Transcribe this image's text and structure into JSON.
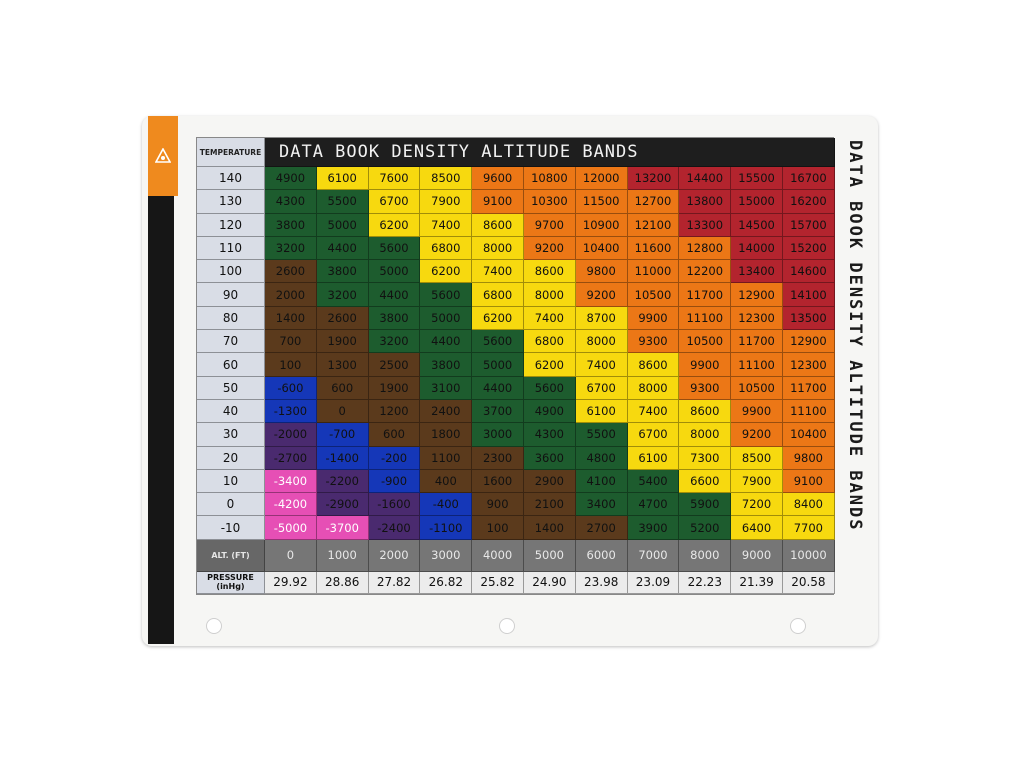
{
  "title": "DATA BOOK DENSITY ALTITUDE BANDS",
  "side_title": "DATA BOOK DENSITY ALTITUDE BANDS",
  "header": {
    "temperature_label": "TEMPERATURE"
  },
  "footer": {
    "alt_label": "ALT. (FT)",
    "pressure_label_line1": "PRESSURE",
    "pressure_label_line2": "(inHg)"
  },
  "colors": {
    "pink": "#e64fb5",
    "purple": "#4a2a6f",
    "blue": "#1537b8",
    "brown": "#5b3a1c",
    "green": "#1d5c2e",
    "yellow": "#f7d90f",
    "orange": "#ec7716",
    "red": "#b3242e",
    "accent_orange": "#ef8a1e"
  },
  "chart_data": {
    "type": "table",
    "title": "DATA BOOK DENSITY ALTITUDE BANDS",
    "xlabel": "ALT. (FT)",
    "ylabel": "TEMPERATURE",
    "altitudes": [
      "0",
      "1000",
      "2000",
      "3000",
      "4000",
      "5000",
      "6000",
      "7000",
      "8000",
      "9000",
      "10000"
    ],
    "pressures": [
      "29.92",
      "28.86",
      "27.82",
      "26.82",
      "25.82",
      "24.90",
      "23.98",
      "23.09",
      "22.23",
      "21.39",
      "20.58"
    ],
    "temperatures": [
      "140",
      "130",
      "120",
      "110",
      "100",
      "90",
      "80",
      "70",
      "60",
      "50",
      "40",
      "30",
      "20",
      "10",
      "0",
      "-10"
    ],
    "values": [
      [
        "4900",
        "6100",
        "7600",
        "8500",
        "9600",
        "10800",
        "12000",
        "13200",
        "14400",
        "15500",
        "16700"
      ],
      [
        "4300",
        "5500",
        "6700",
        "7900",
        "9100",
        "10300",
        "11500",
        "12700",
        "13800",
        "15000",
        "16200"
      ],
      [
        "3800",
        "5000",
        "6200",
        "7400",
        "8600",
        "9700",
        "10900",
        "12100",
        "13300",
        "14500",
        "15700"
      ],
      [
        "3200",
        "4400",
        "5600",
        "6800",
        "8000",
        "9200",
        "10400",
        "11600",
        "12800",
        "14000",
        "15200"
      ],
      [
        "2600",
        "3800",
        "5000",
        "6200",
        "7400",
        "8600",
        "9800",
        "11000",
        "12200",
        "13400",
        "14600"
      ],
      [
        "2000",
        "3200",
        "4400",
        "5600",
        "6800",
        "8000",
        "9200",
        "10500",
        "11700",
        "12900",
        "14100"
      ],
      [
        "1400",
        "2600",
        "3800",
        "5000",
        "6200",
        "7400",
        "8700",
        "9900",
        "11100",
        "12300",
        "13500"
      ],
      [
        "700",
        "1900",
        "3200",
        "4400",
        "5600",
        "6800",
        "8000",
        "9300",
        "10500",
        "11700",
        "12900"
      ],
      [
        "100",
        "1300",
        "2500",
        "3800",
        "5000",
        "6200",
        "7400",
        "8600",
        "9900",
        "11100",
        "12300"
      ],
      [
        "-600",
        "600",
        "1900",
        "3100",
        "4400",
        "5600",
        "6700",
        "8000",
        "9300",
        "10500",
        "11700"
      ],
      [
        "-1300",
        "0",
        "1200",
        "2400",
        "3700",
        "4900",
        "6100",
        "7400",
        "8600",
        "9900",
        "11100"
      ],
      [
        "-2000",
        "-700",
        "600",
        "1800",
        "3000",
        "4300",
        "5500",
        "6700",
        "8000",
        "9200",
        "10400"
      ],
      [
        "-2700",
        "-1400",
        "-200",
        "1100",
        "2300",
        "3600",
        "4800",
        "6100",
        "7300",
        "8500",
        "9800"
      ],
      [
        "-3400",
        "-2200",
        "-900",
        "400",
        "1600",
        "2900",
        "4100",
        "5400",
        "6600",
        "7900",
        "9100"
      ],
      [
        "-4200",
        "-2900",
        "-1600",
        "-400",
        "900",
        "2100",
        "3400",
        "4700",
        "5900",
        "7200",
        "8400"
      ],
      [
        "-5000",
        "-3700",
        "-2400",
        "-1100",
        "100",
        "1400",
        "2700",
        "3900",
        "5200",
        "6400",
        "7700"
      ]
    ],
    "bands": [
      {
        "color": "pink",
        "range": "below -3000"
      },
      {
        "color": "purple",
        "range": "-3000 to -1500"
      },
      {
        "color": "blue",
        "range": "-1500 to 0"
      },
      {
        "color": "brown",
        "range": "0 to 3000"
      },
      {
        "color": "green",
        "range": "3000 to 6000"
      },
      {
        "color": "yellow",
        "range": "6000 to 9000"
      },
      {
        "color": "orange",
        "range": "9000 to 13000"
      },
      {
        "color": "red",
        "range": "above 13000"
      }
    ]
  }
}
